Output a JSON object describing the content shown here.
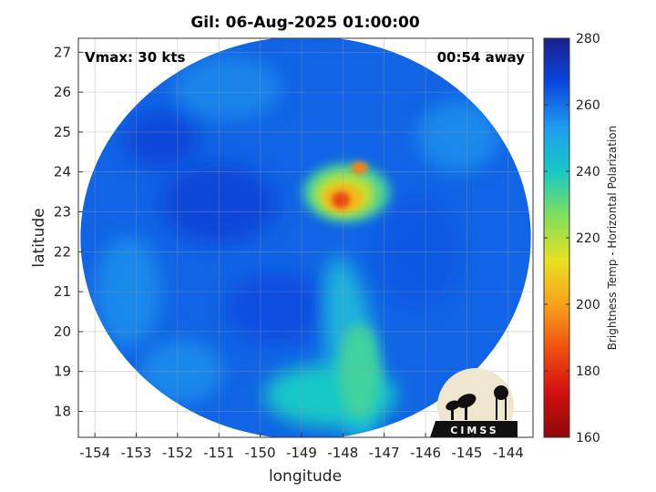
{
  "chart_data": {
    "type": "heatmap",
    "title": "Gil: 06-Aug-2025 01:00:00",
    "xlabel": "longitude",
    "ylabel": "latitude",
    "xlim": [
      -154.4,
      -143.4
    ],
    "ylim": [
      17.35,
      27.35
    ],
    "xticks": [
      -154,
      -153,
      -152,
      -151,
      -150,
      -149,
      -148,
      -147,
      -146,
      -145,
      -144
    ],
    "yticks": [
      18,
      19,
      20,
      21,
      22,
      23,
      24,
      25,
      26,
      27
    ],
    "grid": true,
    "annotations": {
      "left": "Vmax: 30 kts",
      "right": "00:54 away"
    },
    "colorbar": {
      "label": "Brightness Temp - Horizontal Polarization",
      "range": [
        160,
        280
      ],
      "ticks": [
        280,
        260,
        240,
        220,
        200,
        180,
        160
      ],
      "colors": [
        "#1a1f8a",
        "#0a46e0",
        "#1f9bef",
        "#18c8c8",
        "#7fdf5a",
        "#e8e020",
        "#f7a21a",
        "#f05010",
        "#d01010",
        "#900808"
      ]
    },
    "swath": {
      "center_lon": -148.9,
      "center_lat": 22.35,
      "radius_lon": 5.45,
      "radius_lat": 5.05
    },
    "features": [
      {
        "name": "deep convection",
        "lon": -148.0,
        "lat": 23.3,
        "min_temp": 185
      },
      {
        "name": "cold band",
        "lon": -147.6,
        "lat": 24.1,
        "min_temp": 195
      },
      {
        "name": "warm rain band",
        "lon": -147.8,
        "lat": 19.5,
        "min_temp": 235
      }
    ],
    "background_temp": 262
  },
  "logo": {
    "text": "CIMSS"
  }
}
